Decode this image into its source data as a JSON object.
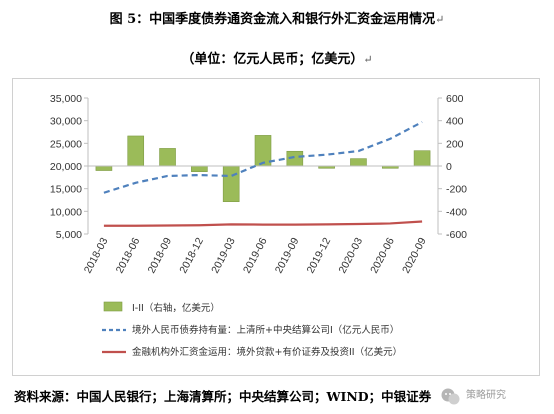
{
  "title": "图 5：中国季度债券通资金流入和银行外汇资金运用情况",
  "subtitle": "（单位：亿元人民币；亿美元）",
  "source": "资料来源：中国人民银行；上海清算所；中央结算公司；WIND；中银证券",
  "watermark": "策略研究",
  "chart_data": {
    "type": "bar+line",
    "categories": [
      "2018-03",
      "2018-06",
      "2018-09",
      "2018-12",
      "2019-03",
      "2019-06",
      "2019-09",
      "2019-12",
      "2020-03",
      "2020-06",
      "2020-09"
    ],
    "left_axis": {
      "min": 5000,
      "max": 35000,
      "ticks": [
        "35,000",
        "30,000",
        "25,000",
        "20,000",
        "15,000",
        "10,000",
        "5,000"
      ]
    },
    "right_axis": {
      "min": -600,
      "max": 600,
      "ticks": [
        "600",
        "400",
        "200",
        "0",
        "-200",
        "-400",
        "-600"
      ]
    },
    "series": [
      {
        "name": "I-II（右轴，亿美元）",
        "kind": "bar",
        "axis": "right",
        "color": "#9bbb59",
        "values": [
          -40,
          265,
          155,
          -50,
          -315,
          270,
          130,
          -20,
          65,
          -20,
          135
        ]
      },
      {
        "name": "境外人民币债券持有量：上清所+中央结算公司I（亿元人民币）",
        "kind": "line",
        "axis": "left",
        "style": "dashed",
        "color": "#4f81bd",
        "values": [
          14100,
          16300,
          17800,
          18000,
          17800,
          20700,
          22000,
          22500,
          23300,
          26000,
          29700
        ]
      },
      {
        "name": "金融机构外汇资金运用：境外贷款+有价证券及投资II（亿美元）",
        "kind": "line",
        "axis": "right",
        "style": "solid",
        "color": "#c0504d",
        "values": [
          -527,
          -527,
          -525,
          -523,
          -515,
          -517,
          -517,
          -515,
          -512,
          -507,
          -490
        ]
      }
    ],
    "legend_position": "bottom",
    "grid": false
  }
}
